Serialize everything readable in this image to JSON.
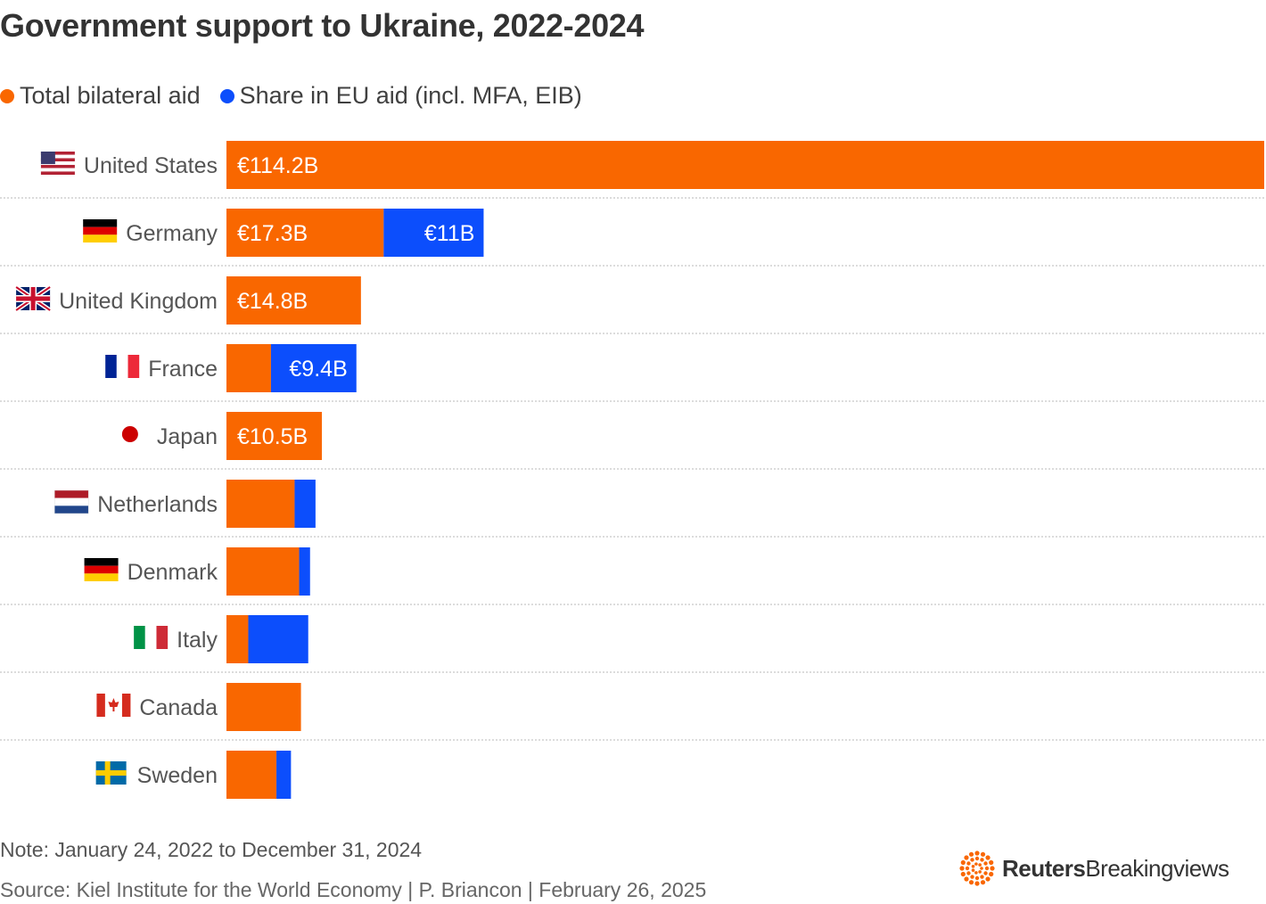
{
  "title": "Government support to Ukraine, 2022-2024",
  "legend": {
    "bilateral": "Total bilateral aid",
    "eu": "Share in EU aid (incl. MFA, EIB)"
  },
  "colors": {
    "bilateral": "#f96700",
    "eu": "#0c4efc",
    "grid": "#c8c8c8"
  },
  "note": "Note: January 24, 2022 to December 31, 2024",
  "source": "Source: Kiel Institute for the World Economy | P. Briancon | February 26, 2025",
  "logo": {
    "part1": "Reuters",
    "part2": "Breakingviews"
  },
  "chart_data": {
    "type": "bar",
    "orientation": "horizontal",
    "stacked": true,
    "categories": [
      "United States",
      "Germany",
      "United Kingdom",
      "France",
      "Japan",
      "Netherlands",
      "Denmark",
      "Italy",
      "Canada",
      "Sweden"
    ],
    "series": [
      {
        "name": "Total bilateral aid",
        "values": [
          114.2,
          17.3,
          14.8,
          4.9,
          10.5,
          7.5,
          8.0,
          2.4,
          8.2,
          5.5
        ]
      },
      {
        "name": "Share in EU aid (incl. MFA, EIB)",
        "values": [
          0,
          11,
          0,
          9.4,
          0,
          2.3,
          1.2,
          6.6,
          0,
          1.6
        ]
      }
    ],
    "data_labels": {
      "bilateral": [
        "€114.2B",
        "€17.3B",
        "€14.8B",
        "",
        "€10.5B",
        "",
        "",
        "",
        "",
        ""
      ],
      "eu": [
        "",
        "€11B",
        "",
        "€9.4B",
        "",
        "",
        "",
        "",
        "",
        ""
      ]
    },
    "flags": [
      "us-flag-icon",
      "germany-flag-icon",
      "uk-flag-icon",
      "france-flag-icon",
      "japan-flag-icon",
      "netherlands-flag-icon",
      "denmark-flag-icon",
      "italy-flag-icon",
      "canada-flag-icon",
      "sweden-flag-icon"
    ],
    "xlim": [
      0,
      114.2
    ],
    "grid": false,
    "legend_position": "top-left"
  }
}
